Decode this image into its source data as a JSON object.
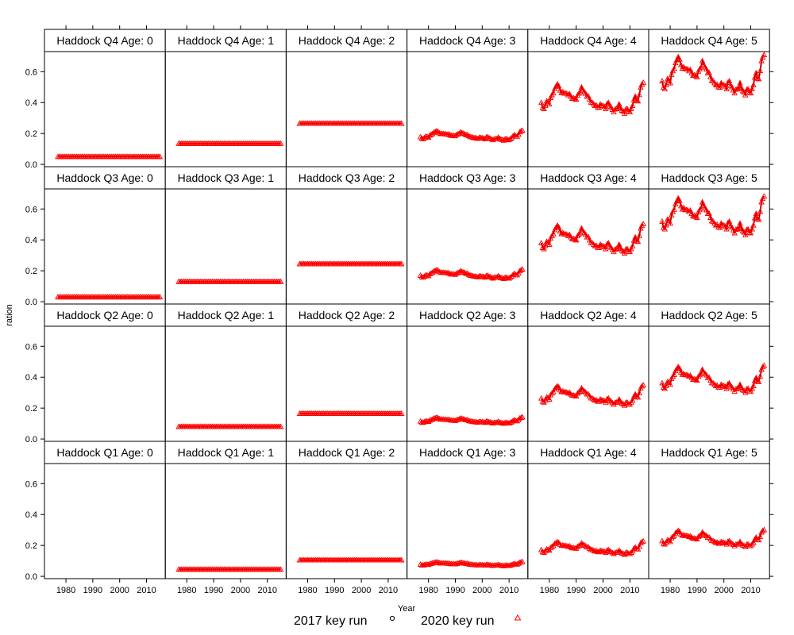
{
  "chart_data": {
    "type": "line",
    "layout": "lattice 6 columns x 4 rows",
    "xlabel": "Year",
    "ylabel": "ration",
    "x_ticks": [
      1980,
      1990,
      2000,
      2010
    ],
    "y_ticks": [
      0.0,
      0.2,
      0.4,
      0.6
    ],
    "y_tick_labels": [
      "0.0",
      "0.2",
      "0.4",
      "0.6"
    ],
    "xlim": [
      1972,
      2017
    ],
    "ylim": [
      -0.015,
      0.73
    ],
    "years": [
      1977,
      2015
    ],
    "legend": {
      "placement": "bottom",
      "entries": [
        {
          "label": "2017 key run",
          "marker": "circle",
          "color": "#000000"
        },
        {
          "label": "2020 key run",
          "marker": "triangle",
          "color": "#ff0000"
        }
      ]
    },
    "series_color": "#ff0000",
    "panels": [
      {
        "strip": "Haddock Q4 Age: 0",
        "kind": "flat",
        "level": 0.05
      },
      {
        "strip": "Haddock Q4 Age: 1",
        "kind": "flat",
        "level": 0.135
      },
      {
        "strip": "Haddock Q4 Age: 2",
        "kind": "flat",
        "level": 0.265
      },
      {
        "strip": "Haddock Q4 Age: 3",
        "kind": "vary",
        "scale": 0.32,
        "offset": 0.05
      },
      {
        "strip": "Haddock Q4 Age: 4",
        "kind": "vary",
        "scale": 1.0,
        "offset": 0.0
      },
      {
        "strip": "Haddock Q4 Age: 5",
        "kind": "vary",
        "scale": 1.3,
        "offset": 0.02
      },
      {
        "strip": "Haddock Q3 Age: 0",
        "kind": "flat",
        "level": 0.03
      },
      {
        "strip": "Haddock Q3 Age: 1",
        "kind": "flat",
        "level": 0.13
      },
      {
        "strip": "Haddock Q3 Age: 2",
        "kind": "flat",
        "level": 0.245
      },
      {
        "strip": "Haddock Q3 Age: 3",
        "kind": "vary",
        "scale": 0.3,
        "offset": 0.05
      },
      {
        "strip": "Haddock Q3 Age: 4",
        "kind": "vary",
        "scale": 0.95,
        "offset": 0.0
      },
      {
        "strip": "Haddock Q3 Age: 5",
        "kind": "vary",
        "scale": 1.25,
        "offset": 0.02
      },
      {
        "strip": "Haddock Q2 Age: 0",
        "kind": "none"
      },
      {
        "strip": "Haddock Q2 Age: 1",
        "kind": "flat",
        "level": 0.08
      },
      {
        "strip": "Haddock Q2 Age: 2",
        "kind": "flat",
        "level": 0.165
      },
      {
        "strip": "Haddock Q2 Age: 3",
        "kind": "vary",
        "scale": 0.2,
        "offset": 0.035
      },
      {
        "strip": "Haddock Q2 Age: 4",
        "kind": "vary",
        "scale": 0.66,
        "offset": 0.0
      },
      {
        "strip": "Haddock Q2 Age: 5",
        "kind": "vary",
        "scale": 0.88,
        "offset": 0.01
      },
      {
        "strip": "Haddock Q1 Age: 0",
        "kind": "none"
      },
      {
        "strip": "Haddock Q1 Age: 1",
        "kind": "flat",
        "level": 0.045
      },
      {
        "strip": "Haddock Q1 Age: 2",
        "kind": "flat",
        "level": 0.105
      },
      {
        "strip": "Haddock Q1 Age: 3",
        "kind": "vary",
        "scale": 0.13,
        "offset": 0.025
      },
      {
        "strip": "Haddock Q1 Age: 4",
        "kind": "vary",
        "scale": 0.43,
        "offset": 0.0
      },
      {
        "strip": "Haddock Q1 Age: 5",
        "kind": "vary",
        "scale": 0.55,
        "offset": 0.01
      }
    ],
    "base_profile": [
      0.4,
      0.36,
      0.41,
      0.39,
      0.45,
      0.49,
      0.52,
      0.48,
      0.47,
      0.46,
      0.45,
      0.44,
      0.43,
      0.42,
      0.46,
      0.5,
      0.47,
      0.44,
      0.42,
      0.4,
      0.38,
      0.37,
      0.39,
      0.38,
      0.36,
      0.4,
      0.37,
      0.34,
      0.36,
      0.39,
      0.35,
      0.33,
      0.36,
      0.34,
      0.38,
      0.44,
      0.41,
      0.5,
      0.53
    ]
  }
}
